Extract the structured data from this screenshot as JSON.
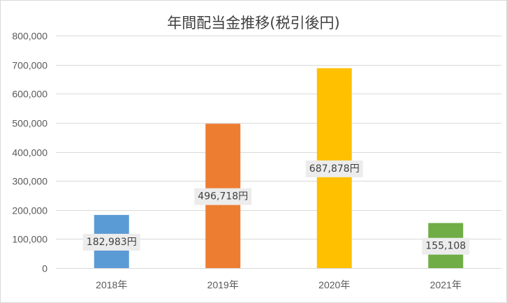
{
  "chart_data": {
    "type": "bar",
    "title": "年間配当金推移(税引後円)",
    "categories": [
      "2018年",
      "2019年",
      "2020年",
      "2021年"
    ],
    "values": [
      182983,
      496718,
      687878,
      155108
    ],
    "data_labels": [
      "182,983円",
      "496,718円",
      "687,878円",
      "155,108"
    ],
    "bar_colors": [
      "#5b9bd5",
      "#ed7d31",
      "#ffc000",
      "#70ad47"
    ],
    "ylim": [
      0,
      800000
    ],
    "yticks": [
      0,
      100000,
      200000,
      300000,
      400000,
      500000,
      600000,
      700000,
      800000
    ],
    "ytick_labels": [
      "0",
      "100,000",
      "200,000",
      "300,000",
      "400,000",
      "500,000",
      "600,000",
      "700,000",
      "800,000"
    ],
    "xlabel": "",
    "ylabel": "",
    "grid": true,
    "legend": "none"
  }
}
